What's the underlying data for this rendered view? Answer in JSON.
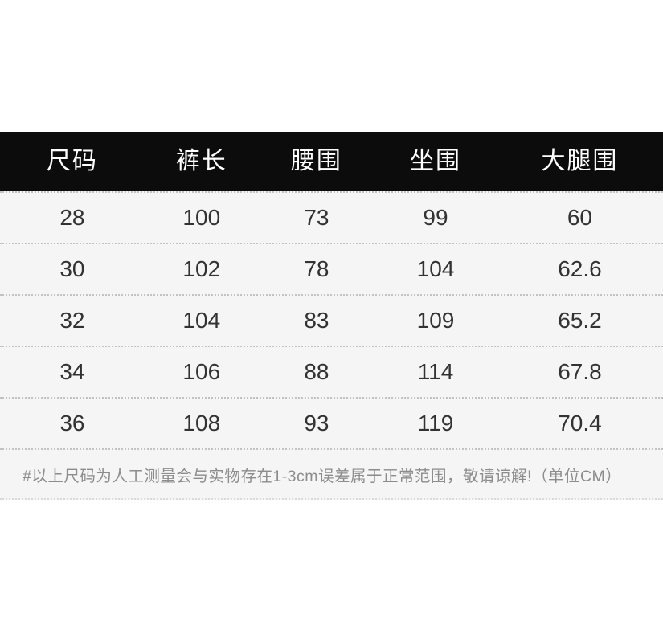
{
  "chart_data": {
    "type": "table",
    "columns": [
      "尺码",
      "裤长",
      "腰围",
      "坐围",
      "大腿围"
    ],
    "rows": [
      [
        "28",
        "100",
        "73",
        "99",
        "60"
      ],
      [
        "30",
        "102",
        "78",
        "104",
        "62.6"
      ],
      [
        "32",
        "104",
        "83",
        "109",
        "65.2"
      ],
      [
        "34",
        "106",
        "88",
        "114",
        "67.8"
      ],
      [
        "36",
        "108",
        "93",
        "119",
        "70.4"
      ]
    ],
    "note": "#以上尺码为人工测量会与实物存在1-3cm误差属于正常范围，敬请谅解!（单位CM）",
    "unit": "CM",
    "title": "",
    "layout": "header-black-bar, dotted row separators, note footer"
  },
  "colors": {
    "header_bg": "#0c0c0c",
    "header_text": "#ffffff",
    "body_bg": "#f5f5f6",
    "body_text": "#323232",
    "divider": "#c2c2c2",
    "note_text": "#8c8c8c",
    "page_bg": "#ffffff"
  }
}
